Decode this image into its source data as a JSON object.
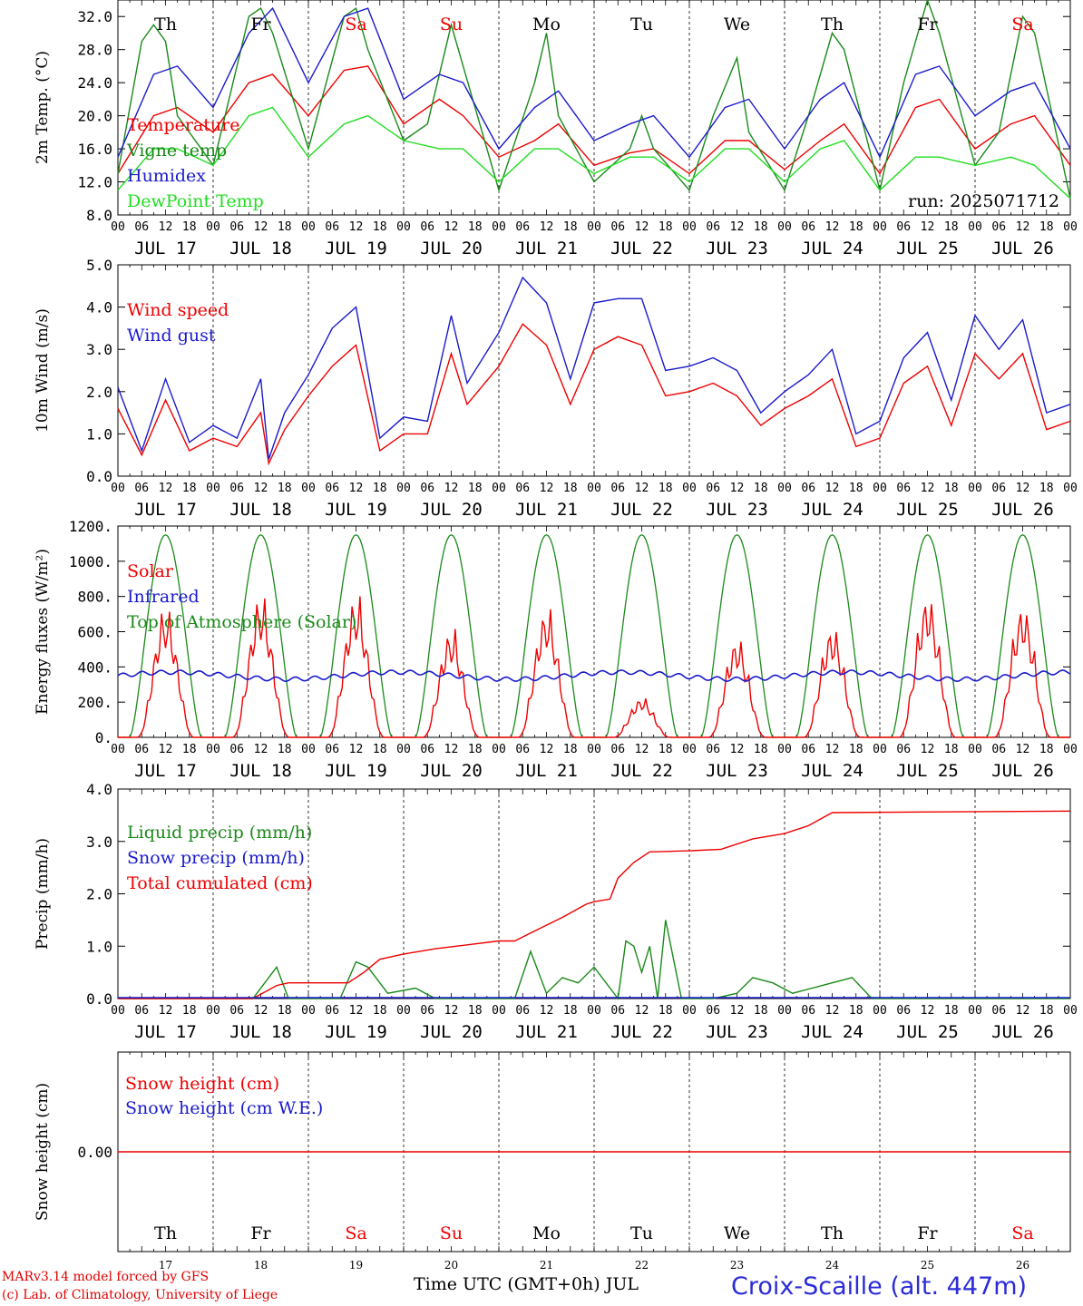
{
  "colors": {
    "red": "#ee0000",
    "green": "#1a8a1a",
    "blue": "#1a1acc",
    "lightgreen": "#22dd22",
    "frame": "#000000"
  },
  "chart_data": [
    {
      "type": "line",
      "id": "temp",
      "ylabel": "2m Temp. (°C)",
      "ylim": [
        8,
        34
      ],
      "yticks": [
        "8.0",
        "12.0",
        "16.0",
        "20.0",
        "24.0",
        "28.0",
        "32.0"
      ],
      "legend": [
        "Temperature",
        "Vigne temp",
        "Humidex",
        "DewPoint Temp"
      ],
      "annotation": "run: 2025071712",
      "series": [
        {
          "name": "Temperature",
          "color": "red",
          "x": [
            0,
            9,
            15,
            24,
            33,
            39,
            48,
            57,
            63,
            72,
            81,
            87,
            96,
            105,
            111,
            120,
            129,
            135,
            144,
            153,
            159,
            168,
            177,
            183,
            192,
            201,
            207,
            216,
            225,
            231,
            240
          ],
          "values": [
            13,
            20,
            21,
            18,
            24,
            25,
            20,
            25.5,
            26,
            19,
            22,
            20,
            15,
            17,
            19,
            14,
            15.5,
            16,
            13,
            17,
            17,
            13.5,
            17,
            19,
            13,
            21,
            22,
            16,
            19,
            20,
            14
          ]
        },
        {
          "name": "Vigne temp",
          "color": "green",
          "x": [
            0,
            6,
            9,
            12,
            15,
            24,
            33,
            36,
            39,
            48,
            57,
            60,
            63,
            72,
            78,
            84,
            87,
            96,
            105,
            108,
            111,
            120,
            129,
            132,
            135,
            144,
            150,
            156,
            159,
            168,
            174,
            180,
            183,
            192,
            198,
            204,
            207,
            216,
            222,
            228,
            231,
            240
          ],
          "values": [
            13,
            29,
            31,
            29,
            20,
            14,
            32,
            33,
            30,
            16,
            32,
            33,
            28,
            17,
            19,
            31,
            26,
            11,
            24,
            30,
            20,
            12,
            16,
            20,
            16,
            11,
            20,
            27,
            18,
            11,
            20,
            30,
            28,
            11,
            24,
            34,
            30,
            14,
            18,
            32,
            30,
            10
          ]
        },
        {
          "name": "Humidex",
          "color": "blue",
          "x": [
            0,
            9,
            15,
            24,
            33,
            39,
            48,
            57,
            63,
            72,
            81,
            87,
            96,
            105,
            111,
            120,
            129,
            135,
            144,
            153,
            159,
            168,
            177,
            183,
            192,
            201,
            207,
            216,
            225,
            231,
            240
          ],
          "values": [
            15,
            25,
            26,
            21,
            30,
            33,
            24,
            32,
            33,
            22,
            25,
            24,
            16,
            21,
            23,
            17,
            19,
            20,
            15,
            21,
            22,
            16,
            22,
            24,
            15,
            25,
            26,
            20,
            23,
            24,
            16
          ]
        },
        {
          "name": "DewPoint Temp",
          "color": "lightgreen",
          "x": [
            0,
            9,
            15,
            24,
            33,
            39,
            48,
            57,
            63,
            72,
            81,
            87,
            96,
            105,
            111,
            120,
            129,
            135,
            144,
            153,
            159,
            168,
            177,
            183,
            192,
            201,
            207,
            216,
            225,
            231,
            240
          ],
          "values": [
            11,
            16,
            16,
            14,
            20,
            21,
            15,
            19,
            20,
            17,
            16,
            16,
            12,
            16,
            16,
            13,
            15,
            15,
            12,
            16,
            16,
            12,
            16,
            17,
            11,
            15,
            15,
            14,
            15,
            14,
            10
          ]
        }
      ]
    },
    {
      "type": "line",
      "id": "wind",
      "ylabel": "10m Wind (m/s)",
      "ylim": [
        0,
        5
      ],
      "yticks": [
        "0.0",
        "1.0",
        "2.0",
        "3.0",
        "4.0",
        "5.0"
      ],
      "legend": [
        "Wind speed",
        "Wind gust"
      ],
      "series": [
        {
          "name": "Wind speed",
          "color": "red",
          "x": [
            0,
            6,
            12,
            18,
            24,
            30,
            36,
            38,
            42,
            48,
            54,
            60,
            66,
            72,
            78,
            84,
            88,
            96,
            102,
            108,
            114,
            120,
            126,
            132,
            138,
            144,
            150,
            156,
            162,
            168,
            174,
            180,
            186,
            192,
            198,
            204,
            210,
            216,
            222,
            228,
            234,
            240
          ],
          "values": [
            1.6,
            0.5,
            1.8,
            0.6,
            0.9,
            0.7,
            1.5,
            0.3,
            1.1,
            1.9,
            2.6,
            3.1,
            0.6,
            1.0,
            1.0,
            2.9,
            1.7,
            2.6,
            3.6,
            3.1,
            1.7,
            3.0,
            3.3,
            3.1,
            1.9,
            2.0,
            2.2,
            1.9,
            1.2,
            1.6,
            1.9,
            2.3,
            0.7,
            0.9,
            2.2,
            2.6,
            1.2,
            2.9,
            2.3,
            2.9,
            1.1,
            1.3
          ]
        },
        {
          "name": "Wind gust",
          "color": "blue",
          "x": [
            0,
            6,
            12,
            18,
            24,
            30,
            36,
            38,
            42,
            48,
            54,
            60,
            66,
            72,
            78,
            84,
            88,
            96,
            102,
            108,
            114,
            120,
            126,
            132,
            138,
            144,
            150,
            156,
            162,
            168,
            174,
            180,
            186,
            192,
            198,
            204,
            210,
            216,
            222,
            228,
            234,
            240
          ],
          "values": [
            2.1,
            0.6,
            2.3,
            0.8,
            1.2,
            0.9,
            2.3,
            0.4,
            1.5,
            2.4,
            3.5,
            4.0,
            0.9,
            1.4,
            1.3,
            3.8,
            2.2,
            3.4,
            4.7,
            4.1,
            2.3,
            4.1,
            4.2,
            4.2,
            2.5,
            2.6,
            2.8,
            2.5,
            1.5,
            2.0,
            2.4,
            3.0,
            1.0,
            1.3,
            2.8,
            3.4,
            1.8,
            3.8,
            3.0,
            3.7,
            1.5,
            1.7
          ]
        }
      ]
    },
    {
      "type": "line",
      "id": "energy",
      "ylabel": "Energy fluxes (W/m²)",
      "ylim": [
        0,
        1200
      ],
      "yticks": [
        "0.",
        "200.",
        "400.",
        "600.",
        "800.",
        "1000.",
        "1200."
      ],
      "legend": [
        "Solar",
        "Infrared",
        "Top of Atmosphere (Solar)"
      ],
      "toa_peak": 1150,
      "solar_peaks": [
        780,
        850,
        850,
        650,
        780,
        240,
        600,
        670,
        860,
        800
      ],
      "infrared_level": 350
    },
    {
      "type": "line",
      "id": "precip",
      "ylabel": "Precip (mm/h)",
      "ylim": [
        0,
        4
      ],
      "yticks": [
        "0.0",
        "1.0",
        "2.0",
        "3.0",
        "4.0"
      ],
      "legend": [
        "Liquid precip (mm/h)",
        "Snow precip (mm/h)",
        "Total cumulated (cm)"
      ],
      "series": [
        {
          "name": "Liquid precip (mm/h)",
          "color": "green",
          "x": [
            0,
            34,
            40,
            43,
            46,
            56,
            60,
            63,
            68,
            75,
            80,
            90,
            100,
            104,
            108,
            112,
            116,
            120,
            126,
            128,
            130,
            132,
            134,
            136,
            138,
            142,
            145,
            150,
            156,
            160,
            165,
            170,
            180,
            185,
            190,
            240
          ],
          "values": [
            0,
            0,
            0.6,
            0,
            0,
            0,
            0.7,
            0.6,
            0.1,
            0.2,
            0,
            0,
            0,
            0.9,
            0.1,
            0.4,
            0.3,
            0.6,
            0,
            1.1,
            1.0,
            0.5,
            1.0,
            0,
            1.5,
            0,
            0,
            0,
            0.1,
            0.4,
            0.3,
            0.1,
            0.3,
            0.4,
            0,
            0
          ]
        },
        {
          "name": "Total cumulated (cm)",
          "color": "red",
          "x": [
            0,
            34,
            40,
            43,
            58,
            62,
            66,
            72,
            80,
            96,
            100,
            104,
            108,
            112,
            118,
            120,
            124,
            126,
            130,
            134,
            144,
            152,
            160,
            168,
            174,
            180,
            240
          ],
          "values": [
            0,
            0,
            0.25,
            0.3,
            0.3,
            0.5,
            0.75,
            0.85,
            0.95,
            1.1,
            1.1,
            1.25,
            1.4,
            1.55,
            1.8,
            1.85,
            1.9,
            2.3,
            2.6,
            2.8,
            2.82,
            2.85,
            3.05,
            3.15,
            3.3,
            3.55,
            3.58
          ]
        }
      ]
    },
    {
      "type": "line",
      "id": "snow",
      "ylabel": "Snow height (cm)",
      "ytick": "0.00",
      "legend": [
        "Snow height (cm)",
        "Snow height (cm W.E.)"
      ],
      "series": [
        {
          "name": "Snow height (cm)",
          "color": "red",
          "x": [
            0,
            240
          ],
          "values": [
            0,
            0
          ]
        }
      ]
    }
  ],
  "days": [
    {
      "abbr": "Th",
      "date": "JUL 17",
      "num": "17",
      "color": "black"
    },
    {
      "abbr": "Fr",
      "date": "JUL 18",
      "num": "18",
      "color": "black"
    },
    {
      "abbr": "Sa",
      "date": "JUL 19",
      "num": "19",
      "color": "red"
    },
    {
      "abbr": "Su",
      "date": "JUL 20",
      "num": "20",
      "color": "red"
    },
    {
      "abbr": "Mo",
      "date": "JUL 21",
      "num": "21",
      "color": "black"
    },
    {
      "abbr": "Tu",
      "date": "JUL 22",
      "num": "22",
      "color": "black"
    },
    {
      "abbr": "We",
      "date": "JUL 23",
      "num": "23",
      "color": "black"
    },
    {
      "abbr": "Th",
      "date": "JUL 24",
      "num": "24",
      "color": "black"
    },
    {
      "abbr": "Fr",
      "date": "JUL 25",
      "num": "25",
      "color": "black"
    },
    {
      "abbr": "Sa",
      "date": "JUL 26",
      "num": "26",
      "color": "red"
    }
  ],
  "hour_labels": [
    "00",
    "06",
    "12",
    "18"
  ],
  "final_hour_label": "00",
  "footer": {
    "credit1": "MARv3.14 model forced by GFS",
    "credit2": "(c) Lab. of Climatology, University of Liege",
    "xaxis": "Time UTC (GMT+0h) JUL",
    "station": "Croix-Scaille (alt. 447m)"
  }
}
